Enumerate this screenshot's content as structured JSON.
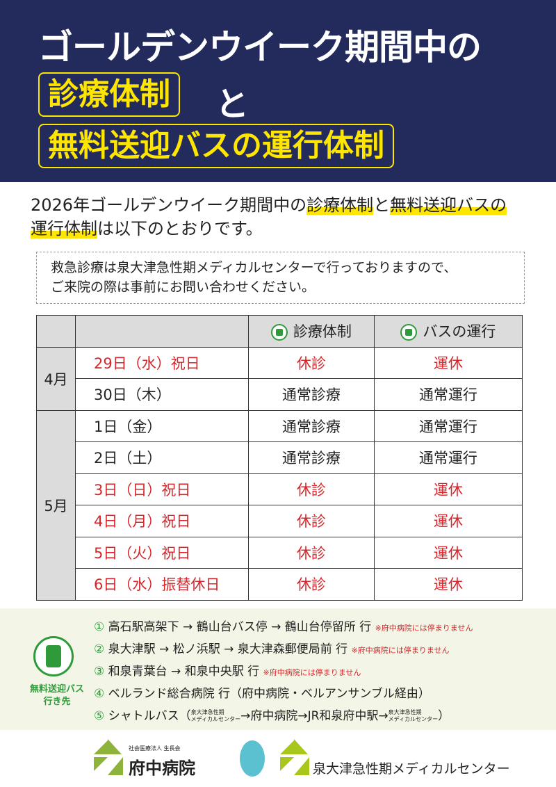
{
  "header": {
    "line1": "ゴールデンウイーク期間中の",
    "box1": "診療体制",
    "and": "と",
    "box2": "無料送迎バスの運行体制"
  },
  "intro": {
    "pre": "2026年ゴールデンウイーク期間中の",
    "hl1": "診療体制",
    "mid": "と",
    "hl2": "無料送迎バスの",
    "hl3": "運行体制",
    "post": "は以下のとおりです。"
  },
  "notice": {
    "line1": "救急診療は泉大津急性期メディカルセンターで行っておりますので、",
    "line2": "ご来院の際は事前にお問い合わせください。"
  },
  "table": {
    "headers": [
      "診療体制",
      "バスの運行"
    ],
    "months": [
      "4月",
      "5月"
    ],
    "rows": [
      {
        "date": "29日（水）祝日",
        "clinic": "休診",
        "bus": "運休",
        "holiday": true
      },
      {
        "date": "30日（木）",
        "clinic": "通常診療",
        "bus": "通常運行",
        "holiday": false
      },
      {
        "date": "1日（金）",
        "clinic": "通常診療",
        "bus": "通常運行",
        "holiday": false
      },
      {
        "date": "2日（土）",
        "clinic": "通常診療",
        "bus": "通常運行",
        "holiday": false
      },
      {
        "date": "3日（日）祝日",
        "clinic": "休診",
        "bus": "運休",
        "holiday": true
      },
      {
        "date": "4日（月）祝日",
        "clinic": "休診",
        "bus": "運休",
        "holiday": true
      },
      {
        "date": "5日（火）祝日",
        "clinic": "休診",
        "bus": "運休",
        "holiday": true
      },
      {
        "date": "6日（水）振替休日",
        "clinic": "休診",
        "bus": "運休",
        "holiday": true
      }
    ]
  },
  "bus": {
    "label1": "無料送迎バス",
    "label2": "行き先",
    "routes": [
      {
        "num": "①",
        "text": "高石駅高架下 → 鶴山台バス停 → 鶴山台停留所 行",
        "note": "※府中病院には停まりません"
      },
      {
        "num": "②",
        "text": "泉大津駅 → 松ノ浜駅 → 泉大津森郵便局前 行",
        "note": "※府中病院には停まりません"
      },
      {
        "num": "③",
        "text": "和泉青葉台 → 和泉中央駅 行",
        "note": "※府中病院には停まりません"
      },
      {
        "num": "④",
        "text": "ベルランド総合病院 行（府中病院・ベルアンサンブル経由）",
        "note": ""
      }
    ],
    "route5": {
      "num": "⑤",
      "a": "シャトルバス（",
      "s1": "泉大津急性期",
      "s2": "メディカルセンター",
      "b": "→府中病院→JR和泉府中駅→",
      "c": "）"
    }
  },
  "logos": {
    "org": "社会医療法人 生長会",
    "h1": "府中病院",
    "h2": "泉大津急性期メディカルセンター"
  },
  "colors": {
    "navy": "#232a5c",
    "yellow": "#ffe600",
    "red": "#d7262b",
    "green": "#2e9a3a"
  }
}
